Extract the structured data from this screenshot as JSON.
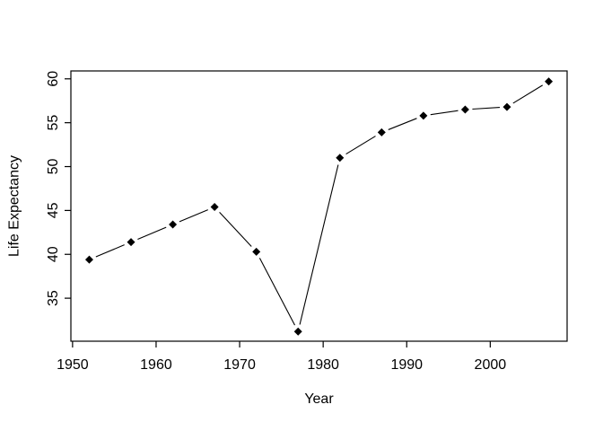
{
  "chart_data": {
    "type": "line",
    "title": "",
    "xlabel": "Year",
    "ylabel": "Life Expectancy",
    "x": [
      1952,
      1957,
      1962,
      1967,
      1972,
      1977,
      1982,
      1987,
      1992,
      1997,
      2002,
      2007
    ],
    "y": [
      39.4,
      41.4,
      43.4,
      45.4,
      40.3,
      31.2,
      51.0,
      53.9,
      55.8,
      56.5,
      56.8,
      59.7
    ],
    "x_ticks": [
      1950,
      1960,
      1970,
      1980,
      1990,
      2000
    ],
    "y_ticks": [
      35,
      40,
      45,
      50,
      55,
      60
    ],
    "xlim": [
      1949.8,
      2009.2
    ],
    "ylim": [
      30.1,
      60.9
    ],
    "grid": false,
    "legend": "none",
    "marker": "filled-diamond",
    "line_style": "segments-with-gaps-around-points",
    "colors": {
      "foreground": "#000000",
      "background": "#ffffff"
    }
  }
}
